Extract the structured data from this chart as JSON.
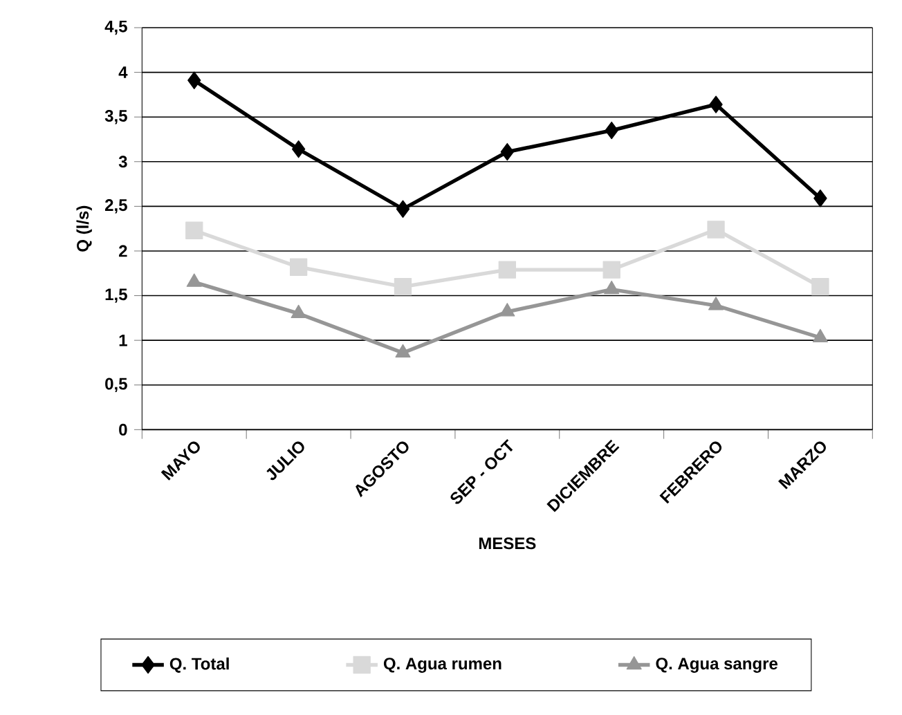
{
  "chart_data": {
    "type": "line",
    "xlabel": "MESES",
    "ylabel": "Q (l/s)",
    "categories": [
      "MAYO",
      "JULIO",
      "AGOSTO",
      "SEP - OCT",
      "DICIEMBRE",
      "FEBRERO",
      "MARZO"
    ],
    "series": [
      {
        "name": "Q. Total",
        "color": "#000000",
        "marker": "diamond",
        "values": [
          3.91,
          3.14,
          2.47,
          3.11,
          3.35,
          3.64,
          2.59
        ]
      },
      {
        "name": "Q. Agua rumen",
        "color": "#d9d9d9",
        "marker": "square",
        "values": [
          2.23,
          1.82,
          1.6,
          1.79,
          1.79,
          2.24,
          1.6
        ]
      },
      {
        "name": "Q. Agua sangre",
        "color": "#969696",
        "marker": "triangle",
        "values": [
          1.65,
          1.3,
          0.86,
          1.32,
          1.57,
          1.39,
          1.03
        ]
      }
    ],
    "ylim": [
      0,
      4.5
    ],
    "yticks": [
      0,
      {
        "value": 0.5,
        "label": "0,5"
      },
      1,
      {
        "value": 1.5,
        "label": "1,5"
      },
      2,
      {
        "value": 2.5,
        "label": "2,5"
      },
      3,
      {
        "value": 3.5,
        "label": "3,5"
      },
      4,
      {
        "value": 4.5,
        "label": "4,5"
      }
    ],
    "grid": "y",
    "legend": "bottom",
    "line_style": "solid"
  }
}
